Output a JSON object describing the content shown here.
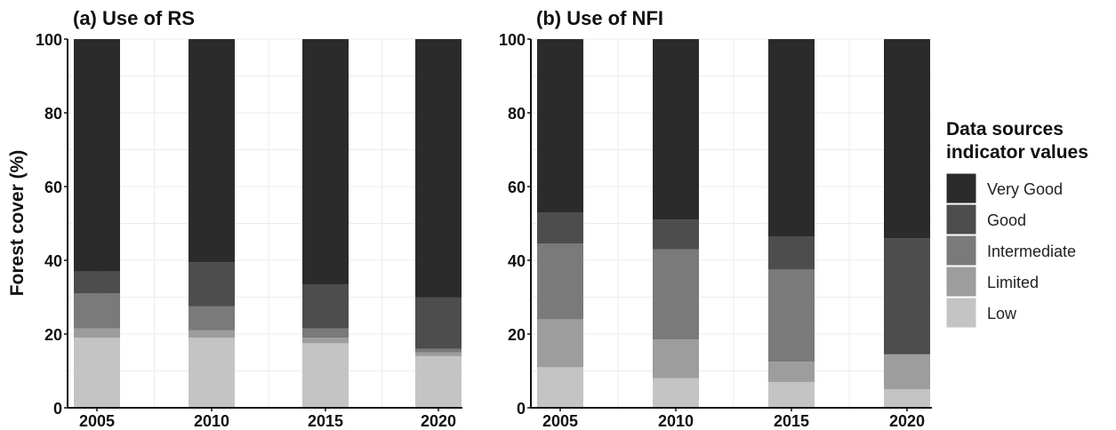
{
  "chart_data": [
    {
      "type": "bar",
      "stacked": true,
      "title": "(a) Use of RS",
      "ylabel": "Forest  cover (%)",
      "ylim": [
        0,
        100
      ],
      "yticks": [
        "0",
        "20",
        "40",
        "60",
        "80",
        "100"
      ],
      "categories": [
        "2005",
        "2010",
        "2015",
        "2020"
      ],
      "grid": true,
      "series": [
        {
          "name": "Low",
          "values": [
            19,
            19,
            17.5,
            14
          ]
        },
        {
          "name": "Limited",
          "values": [
            2.5,
            2,
            1.5,
            1
          ]
        },
        {
          "name": "Intermediate",
          "values": [
            9.5,
            6.5,
            2.5,
            1
          ]
        },
        {
          "name": "Good",
          "values": [
            6,
            12,
            12,
            14
          ]
        },
        {
          "name": "Very Good",
          "values": [
            63,
            60.5,
            66.5,
            70
          ]
        }
      ]
    },
    {
      "type": "bar",
      "stacked": true,
      "title": "(b) Use of NFI",
      "ylabel": "",
      "ylim": [
        0,
        100
      ],
      "yticks": [
        "0",
        "20",
        "40",
        "60",
        "80",
        "100"
      ],
      "categories": [
        "2005",
        "2010",
        "2015",
        "2020"
      ],
      "grid": true,
      "series": [
        {
          "name": "Low",
          "values": [
            11,
            8,
            7,
            5
          ]
        },
        {
          "name": "Limited",
          "values": [
            13,
            10.5,
            5.5,
            9.5
          ]
        },
        {
          "name": "Intermediate",
          "values": [
            20.5,
            24.5,
            25,
            0
          ]
        },
        {
          "name": "Good",
          "values": [
            8.5,
            8,
            9,
            31.5
          ]
        },
        {
          "name": "Very Good",
          "values": [
            47,
            49,
            53.5,
            54
          ]
        }
      ]
    }
  ],
  "legend": {
    "title_line1": "Data sources",
    "title_line2": "indicator values",
    "position": "right",
    "items": [
      "Very Good",
      "Good",
      "Intermediate",
      "Limited",
      "Low"
    ]
  },
  "colors": {
    "Very Good": "#2b2b2b",
    "Good": "#4d4d4d",
    "Intermediate": "#7a7a7a",
    "Limited": "#9d9d9d",
    "Low": "#c4c4c4"
  }
}
